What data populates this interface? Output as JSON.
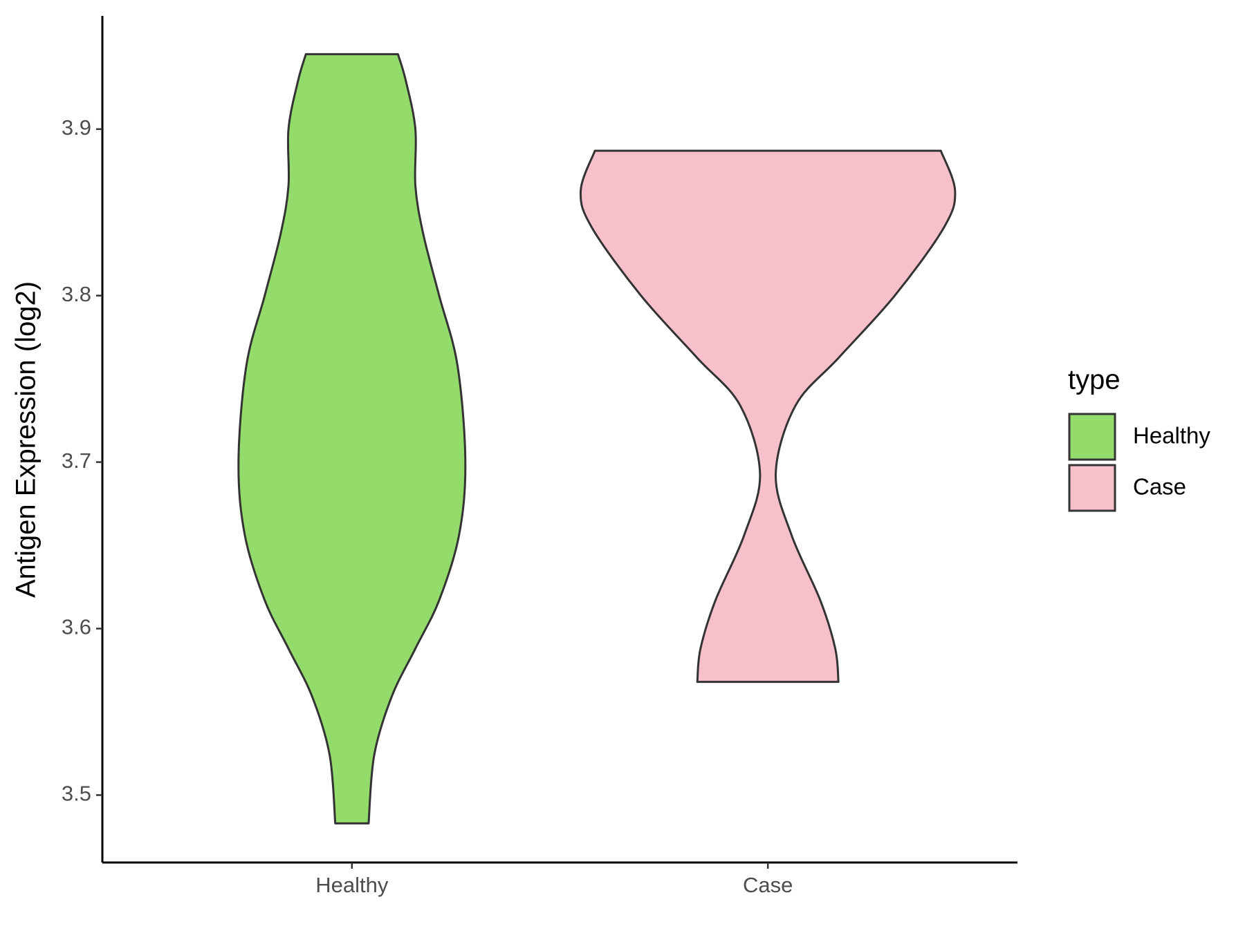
{
  "chart_data": {
    "type": "violin",
    "y_label": "Antigen Expression (log2)",
    "categories": [
      "Healthy",
      "Case"
    ],
    "legend_title": "type",
    "series": [
      {
        "name": "Healthy",
        "color": "#93dc6b",
        "y": [
          3.945,
          3.929,
          3.9,
          3.866,
          3.837,
          3.8,
          3.758,
          3.7,
          3.656,
          3.617,
          3.588,
          3.559,
          3.524,
          3.483
        ],
        "width": [
          0.246,
          0.288,
          0.339,
          0.339,
          0.381,
          0.466,
          0.564,
          0.606,
          0.572,
          0.466,
          0.339,
          0.212,
          0.119,
          0.089
        ]
      },
      {
        "name": "Case",
        "color": "#f7c0cb",
        "y": [
          3.887,
          3.863,
          3.841,
          3.8,
          3.763,
          3.734,
          3.693,
          3.656,
          3.617,
          3.588,
          3.568
        ],
        "width": [
          0.924,
          1.0,
          0.941,
          0.678,
          0.381,
          0.148,
          0.042,
          0.127,
          0.28,
          0.36,
          0.377
        ]
      }
    ],
    "ylim": [
      3.4595,
      3.968
    ],
    "yticks": [
      3.5,
      3.6,
      3.7,
      3.8,
      3.9
    ],
    "legend_position": "right"
  }
}
